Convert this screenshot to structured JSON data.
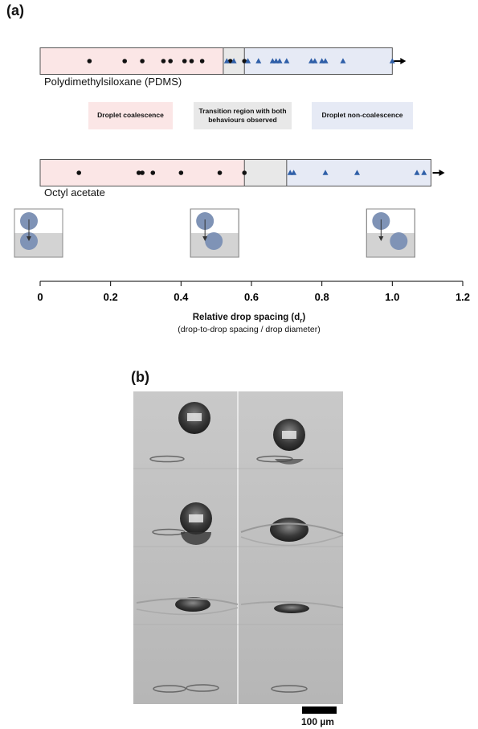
{
  "panel_a_label": "(a)",
  "panel_b_label": "(b)",
  "colors": {
    "coalescence": "#fbe6e6",
    "transition": "#e8e8e8",
    "non_coalescence": "#e6eaf5",
    "dot": "#111111",
    "triangle": "#2f5fa8",
    "drop": "#7f93b6",
    "bath": "#d3d3d3"
  },
  "legend": {
    "coalescence": "Droplet coalescence",
    "transition": "Transition region with both behaviours observed",
    "non_coalescence": "Droplet non-coalescence"
  },
  "scale_bar_label": "100 µm",
  "chart_data": {
    "type": "scatter",
    "xlabel": "Relative drop spacing (d",
    "xlabel_sub": "r",
    "xlabel_close": ")",
    "xlabel_note": "(drop-to-drop spacing / drop diameter)",
    "xlim": [
      0,
      1.2
    ],
    "xticks": [
      0,
      0.2,
      0.4,
      0.6,
      0.8,
      1.0,
      1.2
    ],
    "xtick_labels": [
      "0",
      "0.2",
      "0.4",
      "0.6",
      "0.8",
      "1.0",
      "1.2"
    ],
    "grid": false,
    "series": [
      {
        "name": "Polydimethylsiloxane (PDMS)",
        "coalescence_range": [
          0,
          0.52
        ],
        "transition_range": [
          0.52,
          0.58
        ],
        "non_coalescence_range": [
          0.58,
          1.0
        ],
        "coalescence": [
          0.14,
          0.24,
          0.29,
          0.35,
          0.37,
          0.41,
          0.43,
          0.46,
          0.54,
          0.58
        ],
        "non_coalescence": [
          0.53,
          0.55,
          0.59,
          0.62,
          0.66,
          0.67,
          0.68,
          0.7,
          0.77,
          0.78,
          0.8,
          0.81,
          0.86,
          1.0
        ],
        "arrow": true
      },
      {
        "name": "Octyl acetate",
        "coalescence_range": [
          0,
          0.58
        ],
        "transition_range": [
          0.58,
          0.7
        ],
        "non_coalescence_range": [
          0.7,
          1.11
        ],
        "coalescence": [
          0.11,
          0.28,
          0.29,
          0.32,
          0.4,
          0.51,
          0.58
        ],
        "non_coalescence": [
          0.71,
          0.72,
          0.81,
          0.9,
          1.07,
          1.09
        ],
        "arrow": true
      }
    ],
    "schematics": [
      {
        "at": 0.0,
        "offset": 0.0
      },
      {
        "at": 0.5,
        "offset": 0.5
      },
      {
        "at": 1.0,
        "offset": 1.0
      }
    ]
  }
}
